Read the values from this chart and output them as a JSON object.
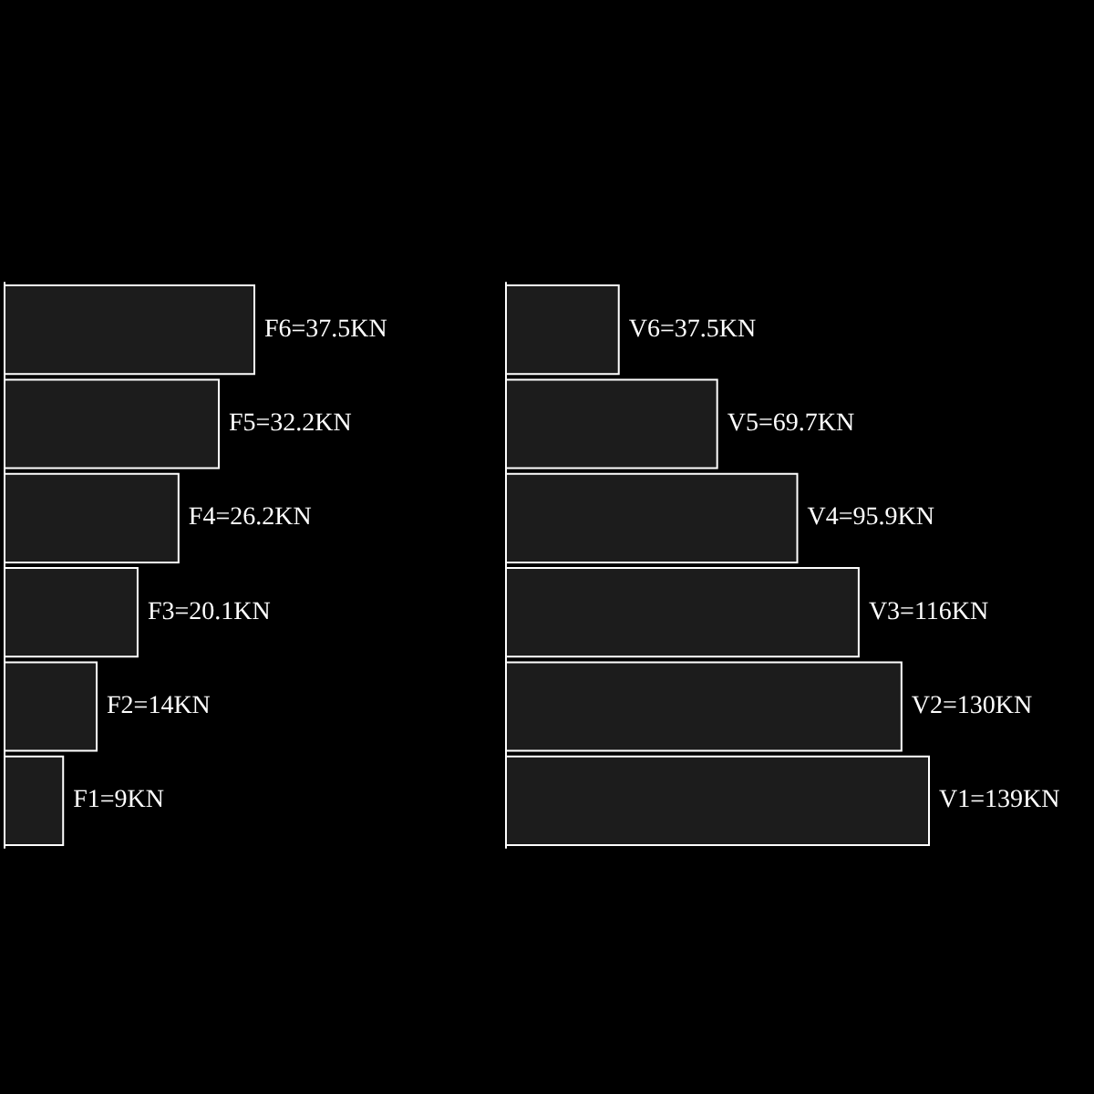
{
  "chart_data": [
    {
      "type": "bar",
      "orientation": "horizontal",
      "categories": [
        null,
        null,
        null,
        null,
        null,
        null
      ],
      "values": [
        37.5,
        32.2,
        26.2,
        20.1,
        14,
        9
      ],
      "value_labels": [
        "F6=37.5KN",
        "F5=32.2KN",
        "F4=26.2KN",
        "F3=20.1KN",
        "F2=14KN",
        "F1=9KN"
      ],
      "color": "#1c1c1c",
      "tick_labels": false
    },
    {
      "type": "bar",
      "orientation": "horizontal",
      "categories": [
        null,
        null,
        null,
        null,
        null,
        null
      ],
      "values": [
        37.5,
        69.7,
        95.9,
        116,
        130,
        139
      ],
      "value_labels": [
        "V6=37.5KN",
        "V5=69.7KN",
        "V4=95.9KN",
        "V3=116KN",
        "V2=130KN",
        "V1=139KN"
      ],
      "color": "#1c1c1c",
      "tick_labels": false
    }
  ]
}
